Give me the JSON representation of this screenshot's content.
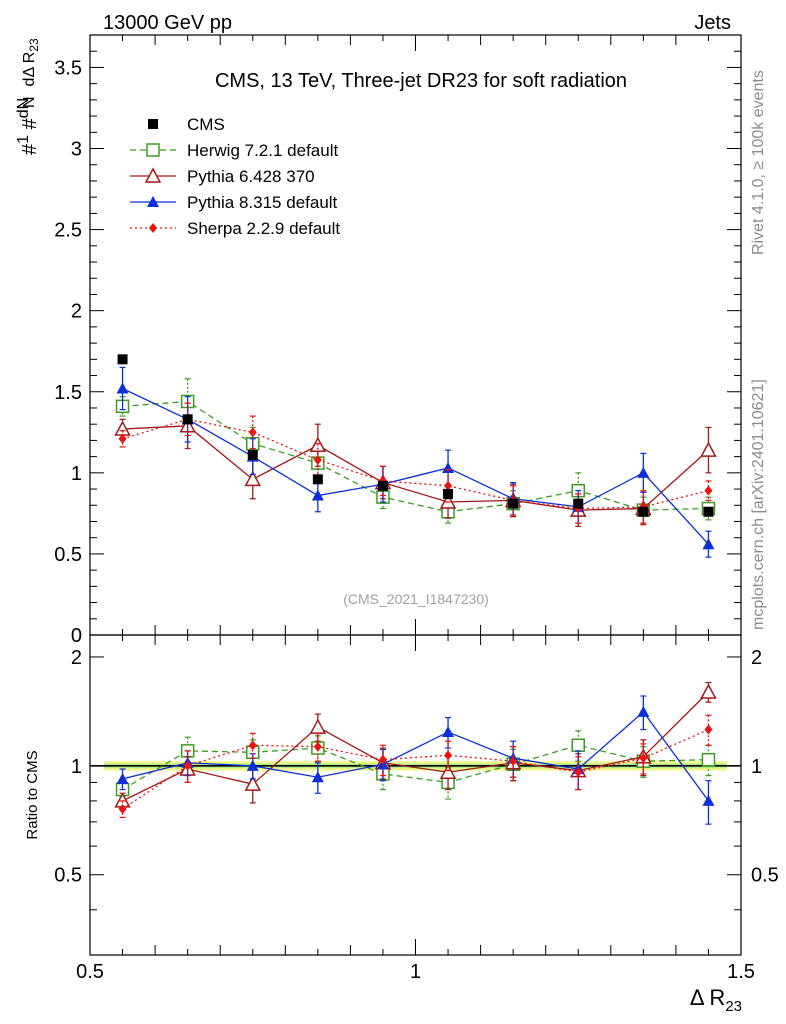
{
  "header": {
    "left": "13000 GeV pp",
    "right": "Jets"
  },
  "side": {
    "rivet": "Rivet 4.1.0, ≥ 100k events",
    "site": "mcplots.cern.ch [arXiv:2401.10621]"
  },
  "chart_data": {
    "type": "line",
    "title": "CMS, 13 TeV, Three-jet DR23 for soft radiation",
    "analysis_id": "(CMS_2021_I1847230)",
    "xlabel": "Δ R23",
    "ylabel": "#1/N #dN/dΔ R23",
    "ratio_ylabel": "Ratio to CMS",
    "xlim": [
      0.5,
      1.5
    ],
    "ylim": [
      0,
      3.7
    ],
    "ratio_ylim": [
      0.3,
      2.3
    ],
    "x_ticks": [
      "0.5",
      "1",
      "1.5"
    ],
    "y_ticks": [
      "0",
      "0.5",
      "1",
      "1.5",
      "2",
      "2.5",
      "3",
      "3.5"
    ],
    "ratio_ticks": [
      "0.5",
      "1",
      "2"
    ],
    "x": [
      0.55,
      0.65,
      0.75,
      0.85,
      0.95,
      1.05,
      1.15,
      1.25,
      1.35,
      1.45
    ],
    "data": {
      "name": "CMS",
      "values": [
        1.7,
        1.33,
        1.11,
        0.96,
        0.92,
        0.87,
        0.81,
        0.81,
        0.76,
        0.76
      ],
      "errors": [
        0.02,
        0.02,
        0.02,
        0.02,
        0.02,
        0.02,
        0.02,
        0.02,
        0.02,
        0.02
      ]
    },
    "series": [
      {
        "name": "Herwig 7.2.1 default",
        "color": "#3a9d1f",
        "marker": "open-square",
        "dash": "6,4",
        "values": [
          1.41,
          1.44,
          1.18,
          1.06,
          0.85,
          0.76,
          0.81,
          0.89,
          0.77,
          0.78
        ],
        "errors": [
          0.06,
          0.14,
          0.1,
          0.09,
          0.07,
          0.07,
          0.08,
          0.11,
          0.08,
          0.07
        ],
        "ratio": [
          0.86,
          1.1,
          1.09,
          1.12,
          0.95,
          0.9,
          1.01,
          1.14,
          1.03,
          1.04
        ],
        "ratio_errors": [
          0.04,
          0.1,
          0.09,
          0.09,
          0.09,
          0.09,
          0.1,
          0.11,
          0.1,
          0.1
        ]
      },
      {
        "name": "Pythia 6.428 370",
        "color": "#a01818",
        "marker": "open-triangle",
        "dash": "",
        "values": [
          1.27,
          1.29,
          0.96,
          1.17,
          0.94,
          0.82,
          0.83,
          0.77,
          0.78,
          1.14
        ],
        "errors": [
          0.06,
          0.14,
          0.12,
          0.13,
          0.1,
          0.1,
          0.1,
          0.1,
          0.1,
          0.14
        ],
        "ratio": [
          0.8,
          0.98,
          0.89,
          1.28,
          1.02,
          0.96,
          1.02,
          0.97,
          1.06,
          1.6
        ],
        "ratio_errors": [
          0.04,
          0.08,
          0.1,
          0.11,
          0.1,
          0.1,
          0.11,
          0.11,
          0.12,
          0.1
        ]
      },
      {
        "name": "Pythia 8.315 default",
        "color": "#0b2fd8",
        "marker": "filled-triangle",
        "dash": "",
        "values": [
          1.52,
          1.33,
          1.1,
          0.86,
          0.93,
          1.03,
          0.84,
          0.79,
          1.0,
          0.56
        ],
        "errors": [
          0.13,
          0.14,
          0.11,
          0.1,
          0.11,
          0.11,
          0.1,
          0.1,
          0.12,
          0.08
        ],
        "ratio": [
          0.92,
          1.02,
          1.0,
          0.93,
          1.01,
          1.24,
          1.05,
          0.98,
          1.41,
          0.8
        ],
        "ratio_errors": [
          0.06,
          0.08,
          0.08,
          0.09,
          0.1,
          0.12,
          0.12,
          0.12,
          0.15,
          0.11
        ]
      },
      {
        "name": "Sherpa 2.2.9 default",
        "color": "#ee1111",
        "marker": "filled-diamond",
        "dash": "2,3",
        "values": [
          1.21,
          1.33,
          1.25,
          1.08,
          0.95,
          0.92,
          0.83,
          0.78,
          0.79,
          0.89
        ],
        "errors": [
          0.05,
          0.1,
          0.1,
          0.1,
          0.09,
          0.1,
          0.09,
          0.09,
          0.1,
          0.06
        ],
        "ratio": [
          0.76,
          1.0,
          1.14,
          1.13,
          1.04,
          1.07,
          1.03,
          0.96,
          1.05,
          1.26
        ],
        "ratio_errors": [
          0.04,
          0.1,
          0.09,
          0.1,
          0.1,
          0.1,
          0.1,
          0.1,
          0.1,
          0.12
        ]
      }
    ]
  }
}
